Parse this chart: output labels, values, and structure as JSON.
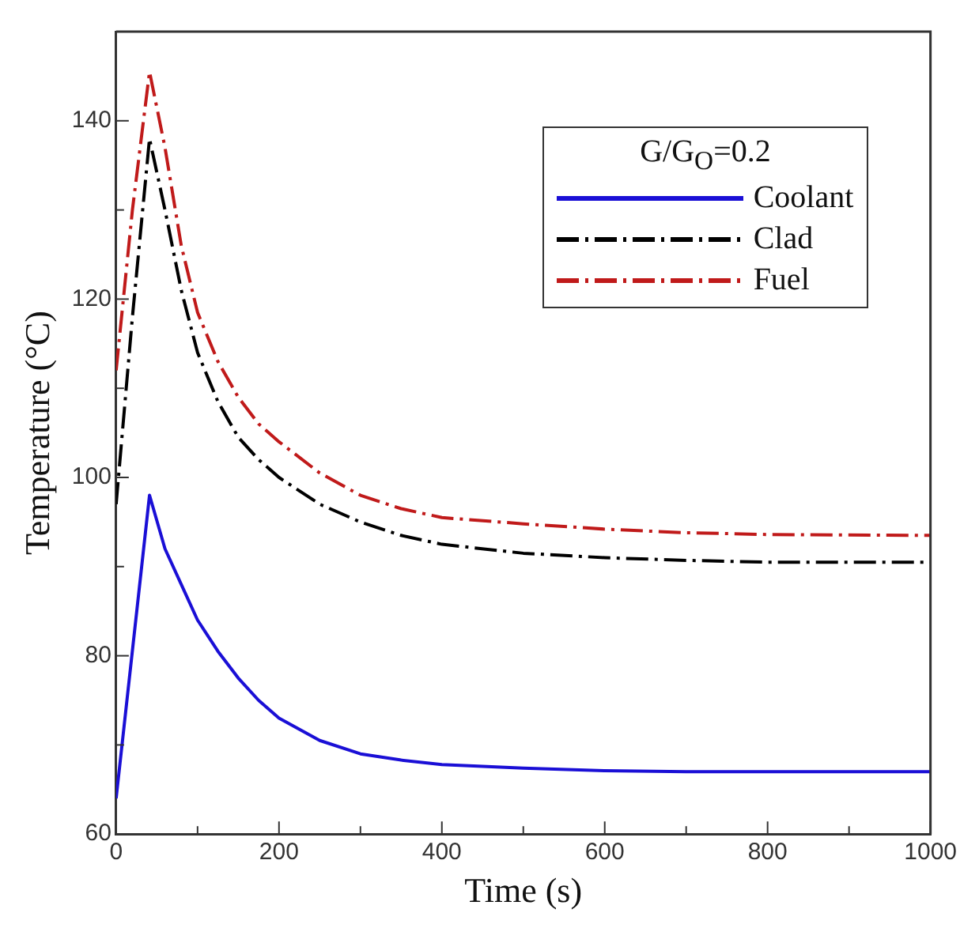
{
  "chart_data": {
    "type": "line",
    "xlabel": "Time (s)",
    "ylabel": "Temperature (°C)",
    "legend_title": "G/G$_{O}$=0.2",
    "legend": "top right",
    "grid": false,
    "marker": "none",
    "xlim": [
      0,
      1000
    ],
    "ylim": [
      60,
      150
    ],
    "xticks": [
      0,
      {
        "value": 100,
        "label": null
      },
      200,
      {
        "value": 300,
        "label": null
      },
      400,
      {
        "value": 500,
        "label": null
      },
      600,
      {
        "value": 700,
        "label": null
      },
      800,
      {
        "value": 900,
        "label": null
      },
      1000
    ],
    "yticks": [
      60,
      {
        "value": 70,
        "label": null
      },
      80,
      {
        "value": 90,
        "label": null
      },
      100,
      {
        "value": 110,
        "label": null
      },
      120,
      {
        "value": 130,
        "label": null
      },
      140
    ],
    "series": [
      {
        "name": "Coolant",
        "color": "#1a0fd6",
        "line_style": "solid",
        "x": [
          0,
          41,
          60,
          80,
          100,
          125,
          150,
          175,
          200,
          250,
          300,
          350,
          400,
          500,
          600,
          700,
          800,
          1000
        ],
        "values": [
          64,
          98,
          92,
          88,
          84,
          80.5,
          77.5,
          75,
          73,
          70.5,
          69,
          68.3,
          67.8,
          67.4,
          67.1,
          67,
          67,
          67
        ]
      },
      {
        "name": "Clad",
        "color": "#000000",
        "line_style": "dashed",
        "x": [
          0,
          20,
          41,
          60,
          80,
          100,
          125,
          150,
          175,
          200,
          250,
          300,
          350,
          400,
          500,
          600,
          700,
          800,
          1000
        ],
        "values": [
          97,
          118,
          138,
          130,
          121,
          114,
          108.5,
          104.5,
          102,
          100,
          97,
          95,
          93.5,
          92.5,
          91.5,
          91,
          90.7,
          90.5,
          90.5
        ]
      },
      {
        "name": "Fuel",
        "color": "#c01a1a",
        "line_style": "dashed",
        "x": [
          0,
          20,
          41,
          60,
          80,
          100,
          125,
          150,
          175,
          200,
          250,
          300,
          350,
          400,
          500,
          600,
          700,
          800,
          1000
        ],
        "values": [
          112,
          130,
          145.5,
          137,
          126,
          118.5,
          113,
          109,
          106,
          104,
          100.5,
          98,
          96.5,
          95.5,
          94.8,
          94.2,
          93.8,
          93.6,
          93.5
        ]
      }
    ]
  }
}
